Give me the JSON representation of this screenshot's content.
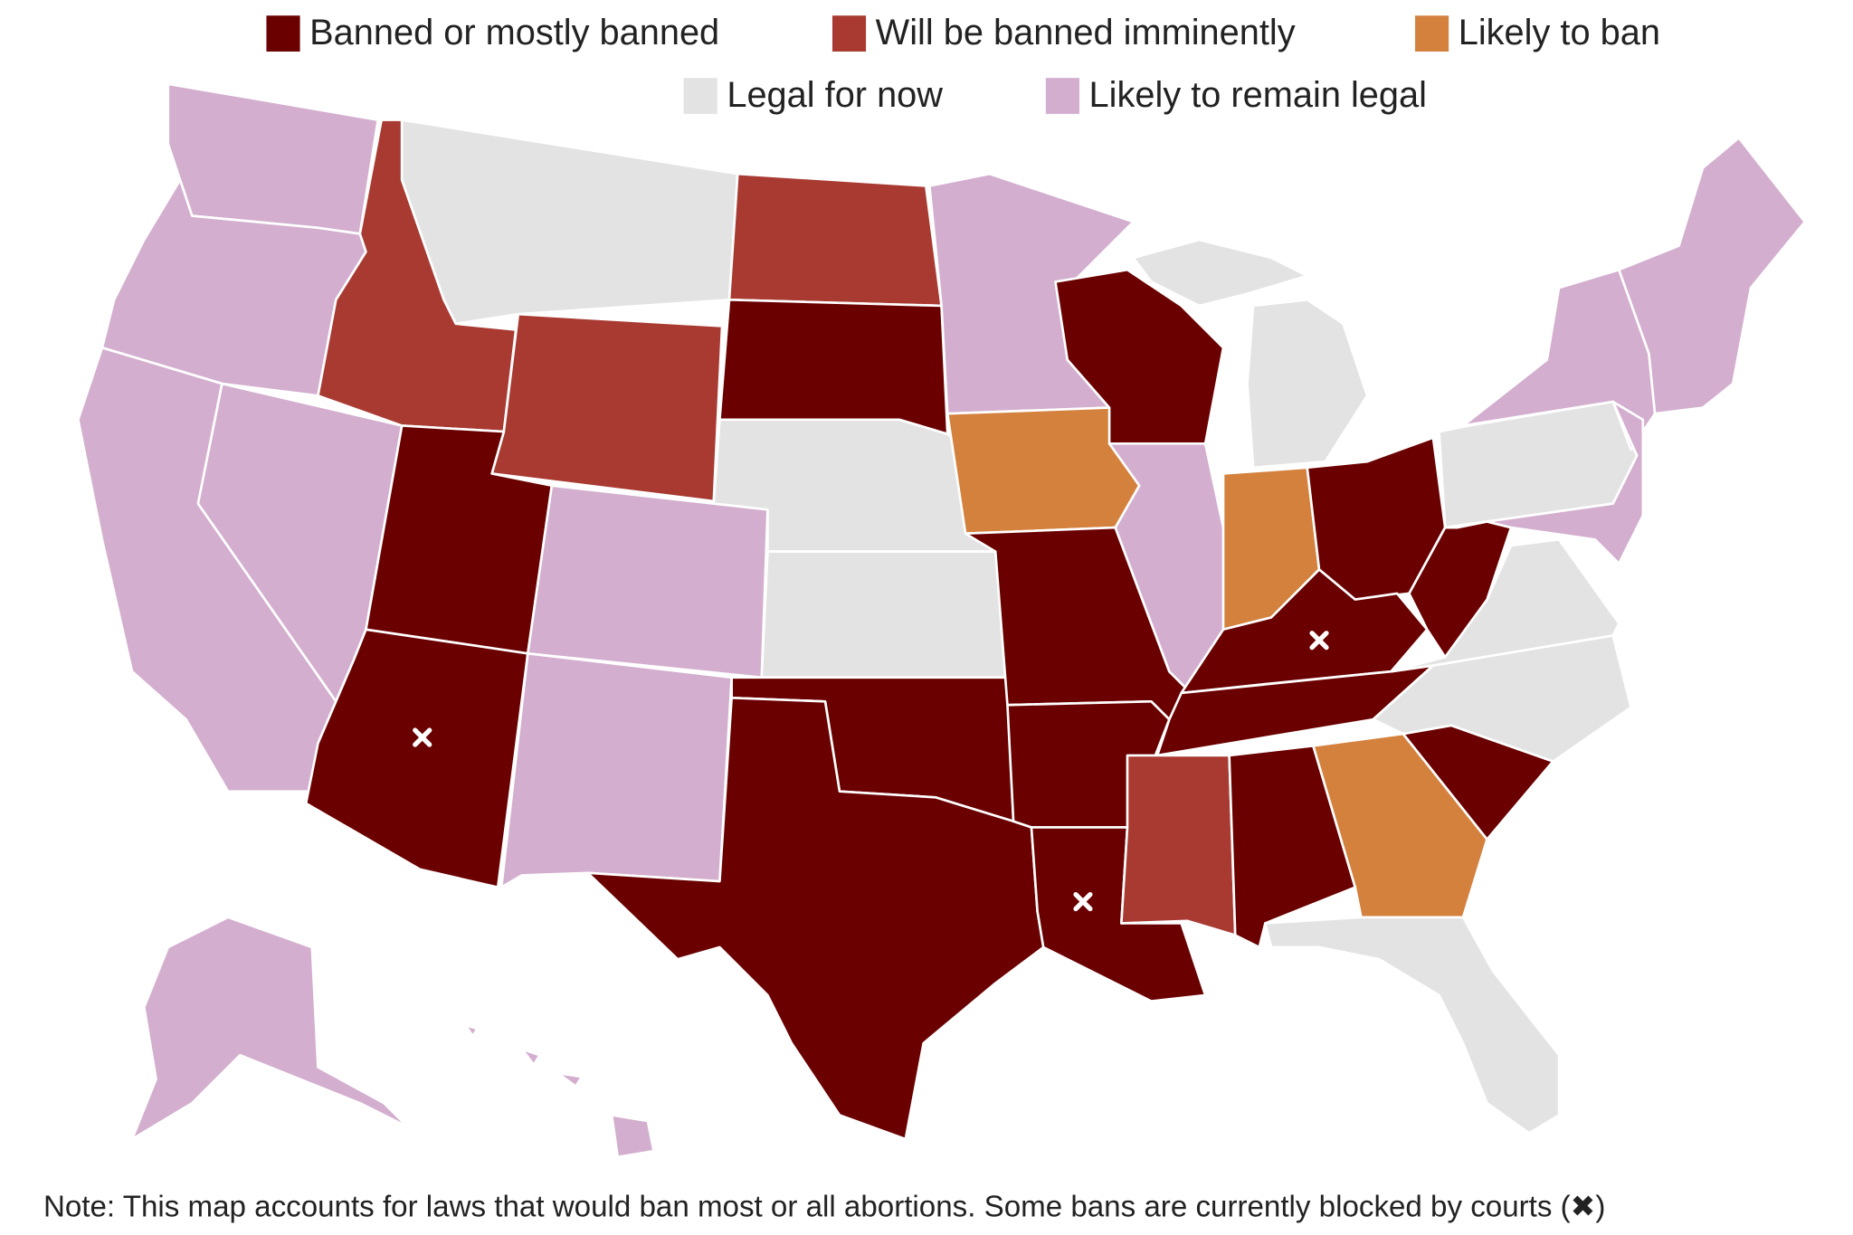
{
  "legend": [
    {
      "label": "Banned or mostly banned",
      "color": "#6b0000"
    },
    {
      "label": "Will be banned imminently",
      "color": "#a83a32"
    },
    {
      "label": "Likely to ban",
      "color": "#d4813e"
    },
    {
      "label": "Legal for now",
      "color": "#e3e3e3"
    },
    {
      "label": "Likely to remain legal",
      "color": "#d3aecf"
    }
  ],
  "note": "Note: This map accounts for laws that would ban most or all abortions. Some bans are currently blocked by courts (✖)"
}
